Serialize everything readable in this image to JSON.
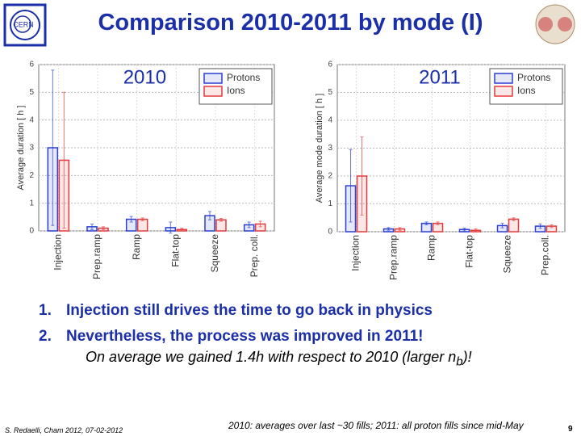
{
  "slide": {
    "title": "Comparison 2010-2011 by mode (I)",
    "bullets": [
      {
        "number": "1.",
        "text": "Injection still drives the time to go back in physics"
      },
      {
        "number": "2.",
        "text": "Nevertheless, the process was improved in 2011!"
      }
    ],
    "note": {
      "before": "On average we gained 1.4h with respect to 2010 (larger n",
      "sub": "b",
      "after": ")!"
    },
    "footer_left": "S. Redaelli, Cham 2012, 07-02-2012",
    "footer_center": "2010: averages over last ~30 fills; 2011: all proton fills since mid-May",
    "page": "9"
  },
  "chart_data": [
    {
      "type": "bar",
      "title": "2010",
      "y_label": "Average duration [ h ]",
      "categories": [
        "Injection",
        "Prep.ramp",
        "Ramp",
        "Flat-top",
        "Squeeze",
        "Prep. coll."
      ],
      "series": [
        {
          "name": "Protons",
          "color": "#2b3fd0",
          "values": [
            3.0,
            0.15,
            0.42,
            0.12,
            0.55,
            0.22
          ],
          "errors": [
            2.8,
            0.1,
            0.1,
            0.2,
            0.15,
            0.1
          ]
        },
        {
          "name": "Ions",
          "color": "#e33b3b",
          "values": [
            2.55,
            0.1,
            0.42,
            0.05,
            0.4,
            0.25
          ],
          "errors": [
            2.45,
            0.05,
            0.05,
            0.05,
            0.05,
            0.1
          ]
        }
      ],
      "ylim": [
        0,
        6
      ],
      "yticks": [
        0,
        1,
        2,
        3,
        4,
        5,
        6
      ],
      "grid": true,
      "legend": "upper right"
    },
    {
      "type": "bar",
      "title": "2011",
      "y_label": "Average mode duration [ h ]",
      "categories": [
        "Injection",
        "Prep.ramp",
        "Ramp",
        "Flat-top",
        "Squeeze",
        "Prep.coll."
      ],
      "series": [
        {
          "name": "Protons",
          "color": "#2b3fd0",
          "values": [
            1.65,
            0.1,
            0.3,
            0.08,
            0.22,
            0.2
          ],
          "errors": [
            1.3,
            0.05,
            0.05,
            0.05,
            0.08,
            0.08
          ]
        },
        {
          "name": "Ions",
          "color": "#e33b3b",
          "values": [
            2.0,
            0.1,
            0.3,
            0.05,
            0.45,
            0.2
          ],
          "errors": [
            1.4,
            0.05,
            0.05,
            0.05,
            0.05,
            0.05
          ]
        }
      ],
      "ylim": [
        0,
        6
      ],
      "yticks": [
        0,
        1,
        2,
        3,
        4,
        5,
        6
      ],
      "grid": true,
      "legend": "upper right"
    }
  ]
}
